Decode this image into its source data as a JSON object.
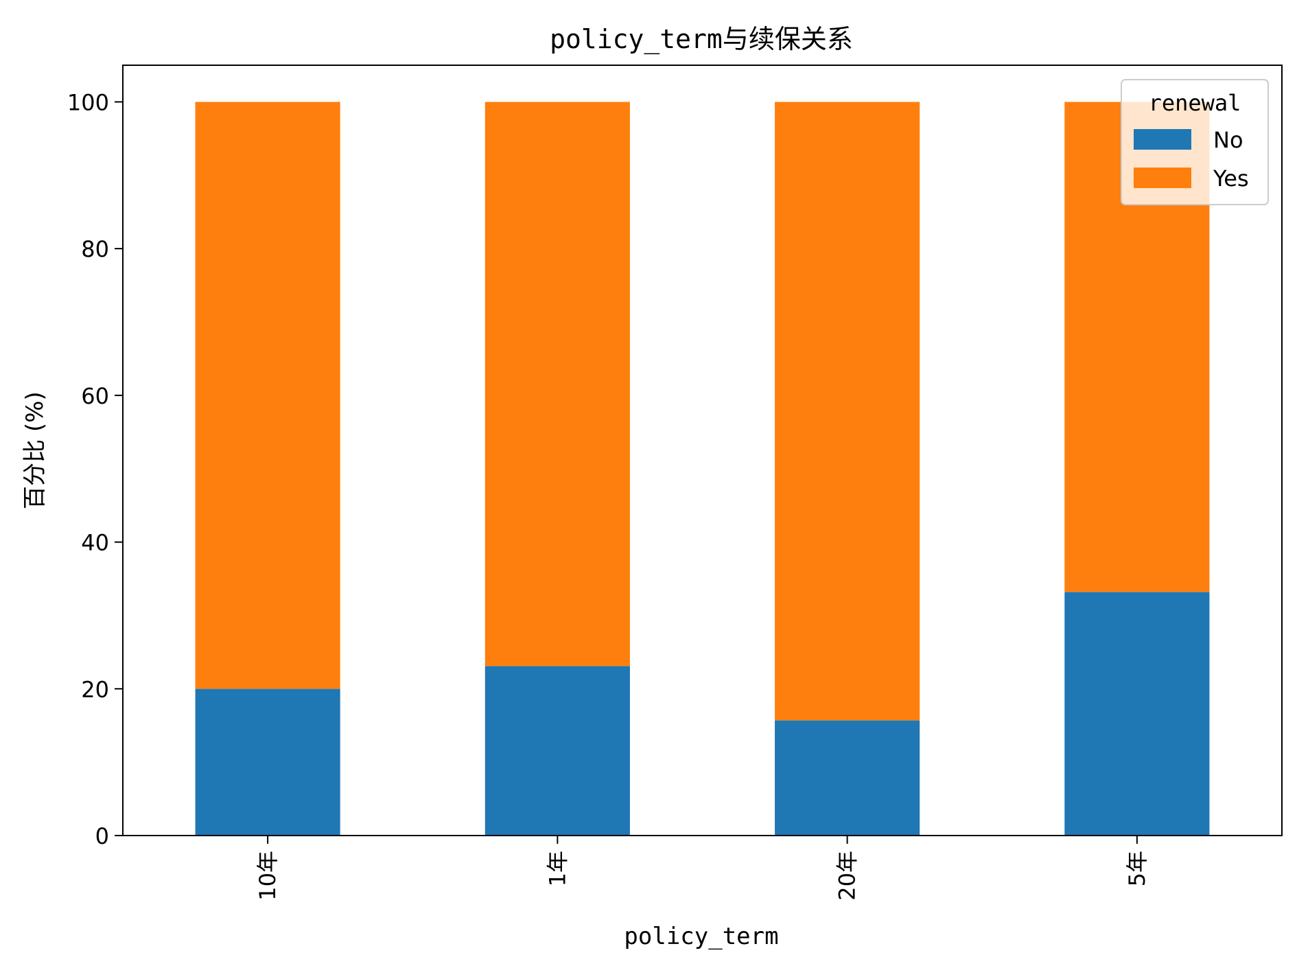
{
  "chart_data": {
    "type": "bar",
    "stacked": true,
    "title": "policy_term与续保关系",
    "xlabel": "policy_term",
    "ylabel": "百分比 (%)",
    "categories": [
      "10年",
      "1年",
      "20年",
      "5年"
    ],
    "series": [
      {
        "name": "No",
        "values": [
          20.0,
          23.1,
          15.7,
          33.2
        ],
        "color": "#1f77b4"
      },
      {
        "name": "Yes",
        "values": [
          80.0,
          76.9,
          84.3,
          66.8
        ],
        "color": "#ff7f0e"
      }
    ],
    "ylim": [
      0,
      105
    ],
    "yticks": [
      0,
      20,
      40,
      60,
      80,
      100
    ],
    "grid": false,
    "legend": {
      "title": "renewal",
      "placement": "top-right"
    }
  }
}
